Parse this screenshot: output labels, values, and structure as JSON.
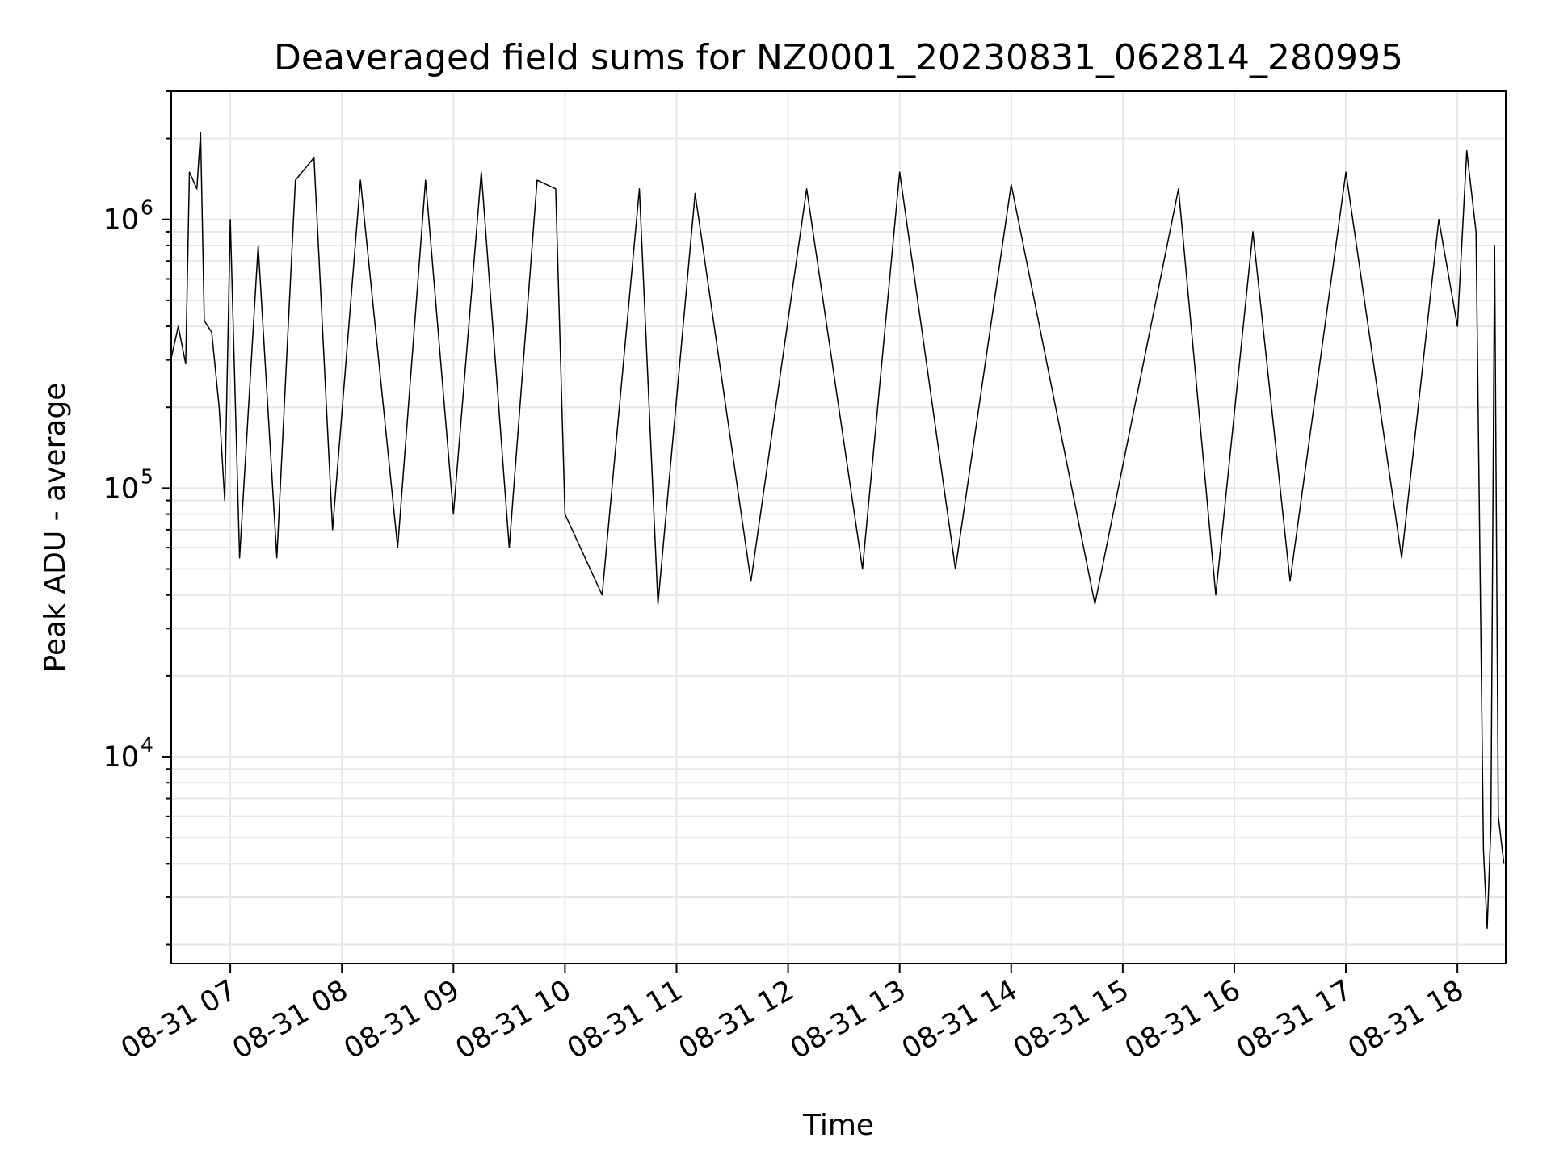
{
  "chart_data": {
    "type": "line",
    "title": "Deaveraged field sums for NZ0001_20230831_062814_280995",
    "xlabel": "Time",
    "ylabel": "Peak ADU - average",
    "yscale": "log",
    "ylim": [
      1700,
      3000000
    ],
    "xlim": [
      "2023-08-31 06:28:14",
      "2023-08-31 18:26:00"
    ],
    "grid": "on",
    "line_color": "#000000",
    "x_ticks": [
      {
        "label": "08-31 07",
        "time": "2023-08-31 07:00"
      },
      {
        "label": "08-31 08",
        "time": "2023-08-31 08:00"
      },
      {
        "label": "08-31 09",
        "time": "2023-08-31 09:00"
      },
      {
        "label": "08-31 10",
        "time": "2023-08-31 10:00"
      },
      {
        "label": "08-31 11",
        "time": "2023-08-31 11:00"
      },
      {
        "label": "08-31 12",
        "time": "2023-08-31 12:00"
      },
      {
        "label": "08-31 13",
        "time": "2023-08-31 13:00"
      },
      {
        "label": "08-31 14",
        "time": "2023-08-31 14:00"
      },
      {
        "label": "08-31 15",
        "time": "2023-08-31 15:00"
      },
      {
        "label": "08-31 16",
        "time": "2023-08-31 16:00"
      },
      {
        "label": "08-31 17",
        "time": "2023-08-31 17:00"
      },
      {
        "label": "08-31 18",
        "time": "2023-08-31 18:00"
      }
    ],
    "y_ticks": [
      {
        "base": "10",
        "exp": "4",
        "value": 10000
      },
      {
        "base": "10",
        "exp": "5",
        "value": 100000
      },
      {
        "base": "10",
        "exp": "6",
        "value": 1000000
      }
    ],
    "series": [
      {
        "points": [
          [
            "2023-08-31 06:28",
            300000
          ],
          [
            "2023-08-31 06:32",
            400000
          ],
          [
            "2023-08-31 06:36",
            290000
          ],
          [
            "2023-08-31 06:38",
            1500000
          ],
          [
            "2023-08-31 06:42",
            1300000
          ],
          [
            "2023-08-31 06:44",
            2100000
          ],
          [
            "2023-08-31 06:46",
            420000
          ],
          [
            "2023-08-31 06:50",
            380000
          ],
          [
            "2023-08-31 06:54",
            200000
          ],
          [
            "2023-08-31 06:57",
            90000
          ],
          [
            "2023-08-31 07:00",
            1000000
          ],
          [
            "2023-08-31 07:05",
            55000
          ],
          [
            "2023-08-31 07:15",
            800000
          ],
          [
            "2023-08-31 07:25",
            55000
          ],
          [
            "2023-08-31 07:35",
            1400000
          ],
          [
            "2023-08-31 07:45",
            1700000
          ],
          [
            "2023-08-31 07:55",
            70000
          ],
          [
            "2023-08-31 08:10",
            1400000
          ],
          [
            "2023-08-31 08:30",
            60000
          ],
          [
            "2023-08-31 08:45",
            1400000
          ],
          [
            "2023-08-31 09:00",
            80000
          ],
          [
            "2023-08-31 09:15",
            1500000
          ],
          [
            "2023-08-31 09:30",
            60000
          ],
          [
            "2023-08-31 09:45",
            1400000
          ],
          [
            "2023-08-31 09:55",
            1300000
          ],
          [
            "2023-08-31 10:00",
            80000
          ],
          [
            "2023-08-31 10:20",
            40000
          ],
          [
            "2023-08-31 10:40",
            1300000
          ],
          [
            "2023-08-31 10:50",
            37000
          ],
          [
            "2023-08-31 11:10",
            1250000
          ],
          [
            "2023-08-31 11:40",
            45000
          ],
          [
            "2023-08-31 12:10",
            1300000
          ],
          [
            "2023-08-31 12:40",
            50000
          ],
          [
            "2023-08-31 13:00",
            1500000
          ],
          [
            "2023-08-31 13:30",
            50000
          ],
          [
            "2023-08-31 14:00",
            1350000
          ],
          [
            "2023-08-31 14:45",
            37000
          ],
          [
            "2023-08-31 15:30",
            1300000
          ],
          [
            "2023-08-31 15:50",
            40000
          ],
          [
            "2023-08-31 16:10",
            900000
          ],
          [
            "2023-08-31 16:30",
            45000
          ],
          [
            "2023-08-31 17:00",
            1500000
          ],
          [
            "2023-08-31 17:30",
            55000
          ],
          [
            "2023-08-31 17:50",
            1000000
          ],
          [
            "2023-08-31 18:00",
            400000
          ],
          [
            "2023-08-31 18:05",
            1800000
          ],
          [
            "2023-08-31 18:10",
            900000
          ],
          [
            "2023-08-31 18:14",
            4500
          ],
          [
            "2023-08-31 18:16",
            2300
          ],
          [
            "2023-08-31 18:18",
            5500
          ],
          [
            "2023-08-31 18:20",
            800000
          ],
          [
            "2023-08-31 18:22",
            6000
          ],
          [
            "2023-08-31 18:25",
            4000
          ]
        ]
      }
    ]
  }
}
